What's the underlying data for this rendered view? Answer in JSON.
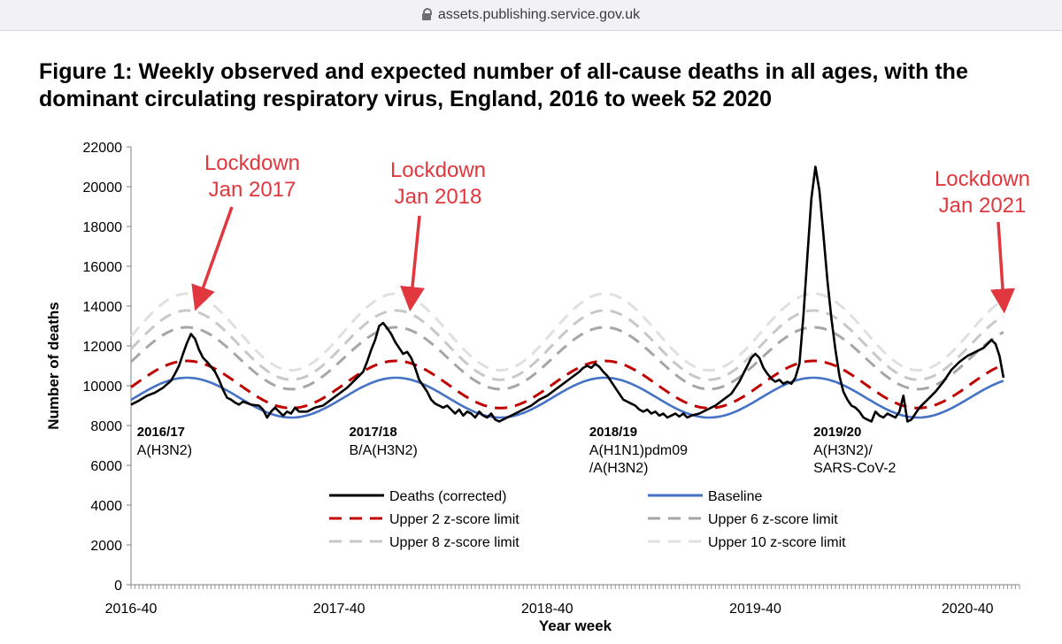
{
  "browser": {
    "url": "assets.publishing.service.gov.uk"
  },
  "figure": {
    "title": "Figure 1: Weekly observed and expected number of all-cause deaths in all ages, with the dominant circulating respiratory virus, England, 2016 to week 52 2020"
  },
  "chart_data": {
    "type": "line",
    "xlabel": "Year week",
    "ylabel": "Number of deaths",
    "ylim": [
      0,
      22000
    ],
    "yticks": [
      0,
      2000,
      4000,
      6000,
      8000,
      10000,
      12000,
      14000,
      16000,
      18000,
      20000,
      22000
    ],
    "xlim": [
      0,
      222
    ],
    "xticks": [
      {
        "label": "2016-40",
        "week": 0
      },
      {
        "label": "2017-40",
        "week": 52
      },
      {
        "label": "2018-40",
        "week": 104
      },
      {
        "label": "2019-40",
        "week": 156
      },
      {
        "label": "2020-40",
        "week": 209
      }
    ],
    "deaths_corrected": [
      [
        0,
        9050
      ],
      [
        2,
        9250
      ],
      [
        4,
        9500
      ],
      [
        6,
        9650
      ],
      [
        8,
        9900
      ],
      [
        10,
        10250
      ],
      [
        11,
        10600
      ],
      [
        12,
        11000
      ],
      [
        13,
        11600
      ],
      [
        14,
        12150
      ],
      [
        15,
        12600
      ],
      [
        16,
        12350
      ],
      [
        17,
        11800
      ],
      [
        18,
        11400
      ],
      [
        19,
        11200
      ],
      [
        20,
        10950
      ],
      [
        21,
        10700
      ],
      [
        22,
        10300
      ],
      [
        23,
        9800
      ],
      [
        24,
        9400
      ],
      [
        25,
        9300
      ],
      [
        26,
        9150
      ],
      [
        27,
        9050
      ],
      [
        28,
        9200
      ],
      [
        30,
        9050
      ],
      [
        32,
        9000
      ],
      [
        33,
        8800
      ],
      [
        34,
        8400
      ],
      [
        35,
        8700
      ],
      [
        36,
        8900
      ],
      [
        37,
        8700
      ],
      [
        38,
        8500
      ],
      [
        39,
        8700
      ],
      [
        40,
        8600
      ],
      [
        41,
        8900
      ],
      [
        42,
        8700
      ],
      [
        44,
        8700
      ],
      [
        46,
        8900
      ],
      [
        48,
        9000
      ],
      [
        50,
        9300
      ],
      [
        52,
        9600
      ],
      [
        54,
        9900
      ],
      [
        55,
        10100
      ],
      [
        56,
        10300
      ],
      [
        58,
        10700
      ],
      [
        59,
        11200
      ],
      [
        60,
        11800
      ],
      [
        61,
        12300
      ],
      [
        62,
        13000
      ],
      [
        63,
        13150
      ],
      [
        64,
        12900
      ],
      [
        65,
        12600
      ],
      [
        66,
        12200
      ],
      [
        67,
        11900
      ],
      [
        68,
        11600
      ],
      [
        69,
        11700
      ],
      [
        70,
        11400
      ],
      [
        71,
        10900
      ],
      [
        72,
        10300
      ],
      [
        73,
        10000
      ],
      [
        74,
        9700
      ],
      [
        75,
        9300
      ],
      [
        76,
        9100
      ],
      [
        77,
        9000
      ],
      [
        78,
        8900
      ],
      [
        79,
        9000
      ],
      [
        80,
        8800
      ],
      [
        81,
        8600
      ],
      [
        82,
        8800
      ],
      [
        83,
        8500
      ],
      [
        84,
        8700
      ],
      [
        85,
        8600
      ],
      [
        86,
        8400
      ],
      [
        87,
        8700
      ],
      [
        88,
        8500
      ],
      [
        89,
        8400
      ],
      [
        90,
        8600
      ],
      [
        91,
        8300
      ],
      [
        92,
        8200
      ],
      [
        94,
        8400
      ],
      [
        96,
        8600
      ],
      [
        98,
        8800
      ],
      [
        100,
        9000
      ],
      [
        102,
        9300
      ],
      [
        104,
        9500
      ],
      [
        106,
        9800
      ],
      [
        108,
        10100
      ],
      [
        110,
        10400
      ],
      [
        112,
        10700
      ],
      [
        113,
        10900
      ],
      [
        114,
        11000
      ],
      [
        115,
        10900
      ],
      [
        116,
        11100
      ],
      [
        117,
        10950
      ],
      [
        118,
        10700
      ],
      [
        119,
        10500
      ],
      [
        120,
        10200
      ],
      [
        121,
        9900
      ],
      [
        122,
        9600
      ],
      [
        123,
        9300
      ],
      [
        124,
        9200
      ],
      [
        125,
        9100
      ],
      [
        126,
        9000
      ],
      [
        127,
        8800
      ],
      [
        128,
        8700
      ],
      [
        129,
        8800
      ],
      [
        130,
        8600
      ],
      [
        131,
        8700
      ],
      [
        132,
        8500
      ],
      [
        133,
        8600
      ],
      [
        134,
        8400
      ],
      [
        135,
        8500
      ],
      [
        136,
        8600
      ],
      [
        137,
        8450
      ],
      [
        138,
        8600
      ],
      [
        139,
        8400
      ],
      [
        140,
        8500
      ],
      [
        142,
        8600
      ],
      [
        144,
        8800
      ],
      [
        146,
        9000
      ],
      [
        148,
        9300
      ],
      [
        150,
        9600
      ],
      [
        151,
        9900
      ],
      [
        152,
        10200
      ],
      [
        153,
        10600
      ],
      [
        154,
        11000
      ],
      [
        155,
        11400
      ],
      [
        156,
        11600
      ],
      [
        157,
        11400
      ],
      [
        158,
        10900
      ],
      [
        159,
        10600
      ],
      [
        160,
        10350
      ],
      [
        161,
        10200
      ],
      [
        162,
        10300
      ],
      [
        163,
        10100
      ],
      [
        164,
        10200
      ],
      [
        165,
        10100
      ],
      [
        166,
        10400
      ],
      [
        167,
        11100
      ],
      [
        168,
        13500
      ],
      [
        169,
        16500
      ],
      [
        170,
        19400
      ],
      [
        171,
        21000
      ],
      [
        172,
        19800
      ],
      [
        173,
        17600
      ],
      [
        174,
        15300
      ],
      [
        175,
        13400
      ],
      [
        176,
        11800
      ],
      [
        177,
        10500
      ],
      [
        178,
        9700
      ],
      [
        179,
        9300
      ],
      [
        180,
        9000
      ],
      [
        181,
        8900
      ],
      [
        182,
        8700
      ],
      [
        183,
        8400
      ],
      [
        184,
        8300
      ],
      [
        185,
        8200
      ],
      [
        186,
        8700
      ],
      [
        187,
        8500
      ],
      [
        188,
        8400
      ],
      [
        189,
        8600
      ],
      [
        190,
        8500
      ],
      [
        191,
        8400
      ],
      [
        192,
        8700
      ],
      [
        193,
        9500
      ],
      [
        194,
        8200
      ],
      [
        195,
        8300
      ],
      [
        196,
        8600
      ],
      [
        197,
        8900
      ],
      [
        199,
        9300
      ],
      [
        201,
        9700
      ],
      [
        203,
        10200
      ],
      [
        205,
        10800
      ],
      [
        207,
        11200
      ],
      [
        209,
        11500
      ],
      [
        211,
        11700
      ],
      [
        213,
        11900
      ],
      [
        215,
        12300
      ],
      [
        216,
        12100
      ],
      [
        217,
        11500
      ],
      [
        218,
        10400
      ]
    ],
    "baseline": {
      "mean": 9400,
      "amplitude": 1000,
      "peak_week": 14,
      "end_week": 218
    },
    "series": [
      {
        "name": "Deaths (corrected)",
        "color": "#000000",
        "style": "solid"
      },
      {
        "name": "Baseline",
        "color": "#4472c4",
        "style": "solid"
      },
      {
        "name": "Upper 2 z-score limit",
        "color": "#c00000",
        "style": "dashed",
        "z": 2
      },
      {
        "name": "Upper 6 z-score limit",
        "color": "#a6a6a6",
        "style": "dashed",
        "z": 6
      },
      {
        "name": "Upper 8 z-score limit",
        "color": "#c8c8c8",
        "style": "dashed",
        "z": 8
      },
      {
        "name": "Upper 10 z-score limit",
        "color": "#e0e0e0",
        "style": "dashed",
        "z": 10
      }
    ],
    "z_score_step": 330,
    "season_labels": [
      {
        "season": "2016/17",
        "virus": "A(H3N2)",
        "week": 1.5,
        "value": 8000
      },
      {
        "season": "2017/18",
        "virus": "B/A(H3N2)",
        "week": 54.5,
        "value": 8000
      },
      {
        "season": "2018/19",
        "virus": "A(H1N1)pdm09\n/A(H3N2)",
        "week": 114.5,
        "value": 8000
      },
      {
        "season": "2019/20",
        "virus": "A(H3N2)/\nSARS-CoV-2",
        "week": 170.5,
        "value": 8000
      }
    ],
    "annotations": [
      {
        "text": "Lockdown\nJan 2017",
        "color": "#e0383e",
        "week": 17,
        "arrow_to_value": 13900
      },
      {
        "text": "Lockdown\nJan 2018",
        "color": "#e0383e",
        "week": 70,
        "arrow_to_value": 13900
      },
      {
        "text": "Lockdown\nJan 2021",
        "color": "#e0383e",
        "week": 218,
        "arrow_to_value": 13800
      }
    ]
  }
}
